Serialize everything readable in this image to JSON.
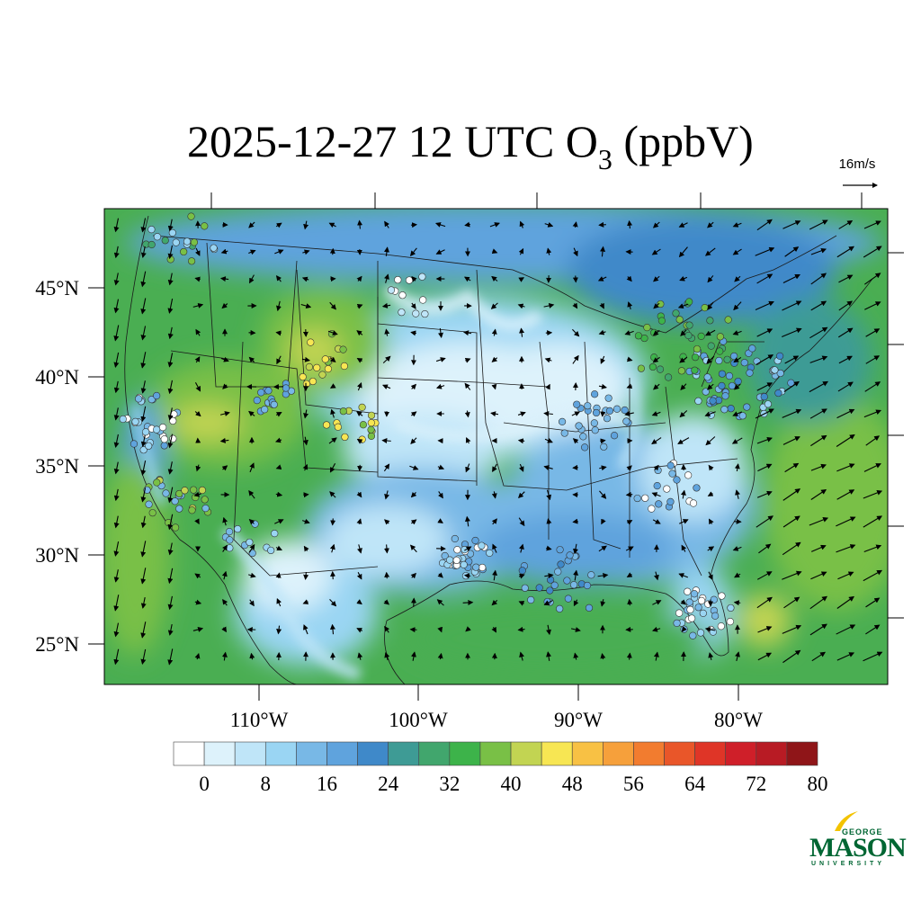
{
  "title": {
    "prefix": "2025-12-27 12 UTC O",
    "subscript": "3",
    "suffix": " (ppbV)"
  },
  "wind_reference": {
    "label": "16m/s"
  },
  "axes": {
    "latitude_labels": [
      "45°N",
      "40°N",
      "35°N",
      "30°N",
      "25°N"
    ],
    "longitude_labels": [
      "110°W",
      "100°W",
      "90°W",
      "80°W"
    ]
  },
  "colorbar": {
    "colors": [
      "#ffffff",
      "#ddf2fb",
      "#bfe5f8",
      "#9ad5f3",
      "#78b8e6",
      "#5fa3dd",
      "#3f89c9",
      "#3e9b95",
      "#41a66d",
      "#3db34a",
      "#79c046",
      "#c2d452",
      "#f7e653",
      "#f8c144",
      "#f6a03b",
      "#f27c2f",
      "#e95629",
      "#df3527",
      "#cf1f29",
      "#b81b24",
      "#8f1518"
    ],
    "tick_labels": [
      "0",
      "8",
      "16",
      "24",
      "32",
      "40",
      "48",
      "56",
      "64",
      "72",
      "80"
    ]
  },
  "logo": {
    "line1": "GEORGE",
    "line2": "MASON",
    "line3": "UNIVERSITY"
  }
}
